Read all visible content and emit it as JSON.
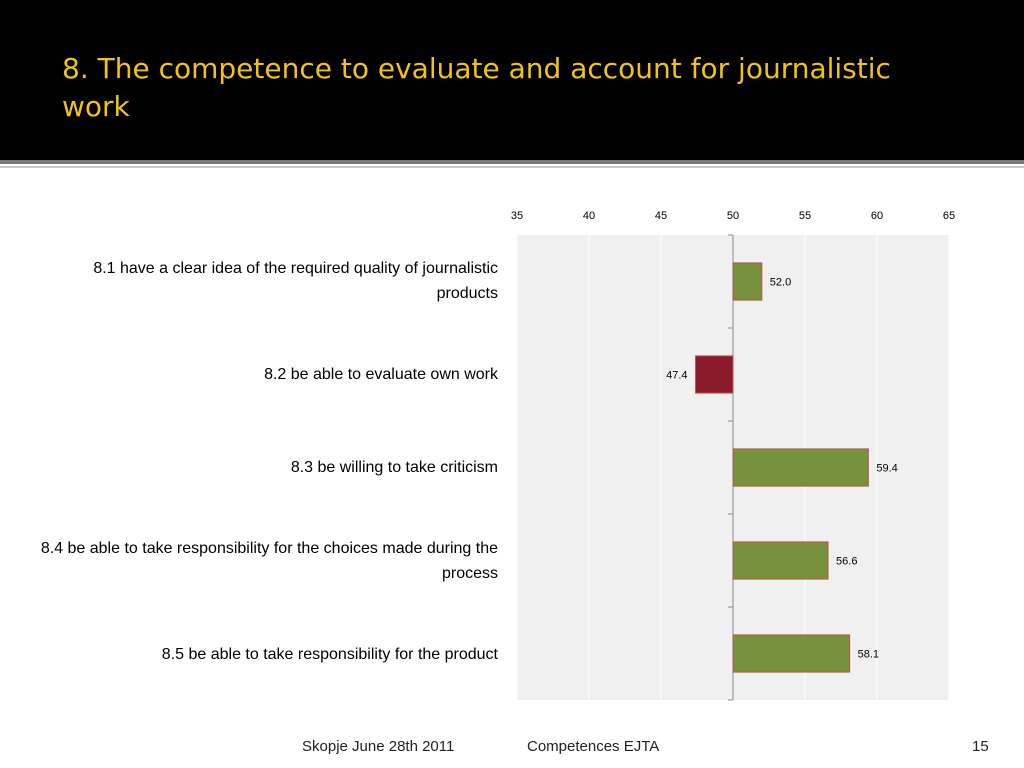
{
  "slide": {
    "title": "8. The competence to evaluate and account for journalistic work",
    "footer_left": "Skopje June 28th 2011",
    "footer_center": "Competences EJTA",
    "page_number": "15"
  },
  "colors": {
    "title_bar": "#000000",
    "title_text": "#f2c218",
    "plot_background": "#f0f0f0",
    "bar_above_50": "#76923c",
    "bar_below_50": "#8b1a2b",
    "bar_border": "#c0504d"
  },
  "chart_data": {
    "type": "bar",
    "orientation": "horizontal",
    "baseline": 50,
    "categories": [
      "8.1 have a clear idea of the required quality of journalistic products",
      "8.2 be able to evaluate own work",
      "8.3 be willing to take criticism",
      "8.4 be able to take responsibility for the choices made during the process",
      "8.5 be able to take responsibility for the product"
    ],
    "values": [
      52.0,
      47.4,
      59.4,
      56.6,
      58.1
    ],
    "data_labels": [
      "52.0",
      "47.4",
      "59.4",
      "56.6",
      "58.1"
    ],
    "xlim": [
      35,
      65
    ],
    "x_ticks": [
      35,
      40,
      45,
      50,
      55,
      60,
      65
    ],
    "x_tick_labels": [
      "35",
      "40",
      "45",
      "50",
      "55",
      "60",
      "65"
    ],
    "x_axis_position": "top",
    "grid": true
  }
}
